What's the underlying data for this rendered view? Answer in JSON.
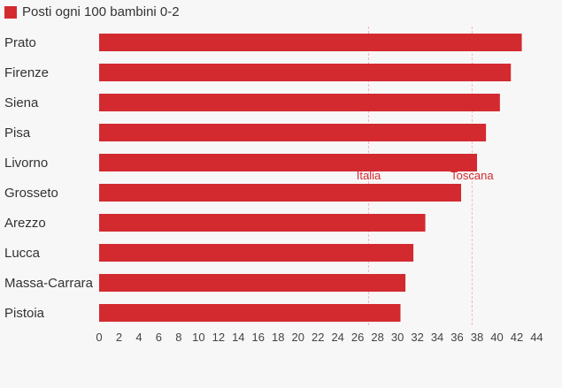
{
  "chart_data": {
    "type": "bar",
    "orientation": "horizontal",
    "legend": {
      "label": "Posti ogni 100 bambini 0-2",
      "position": "top-left"
    },
    "categories": [
      "Prato",
      "Firenze",
      "Siena",
      "Pisa",
      "Livorno",
      "Grosseto",
      "Arezzo",
      "Lucca",
      "Massa-Carrara",
      "Pistoia"
    ],
    "series": [
      {
        "name": "Posti ogni 100 bambini 0-2",
        "values": [
          42.5,
          41.4,
          40.3,
          38.9,
          38.0,
          36.4,
          32.8,
          31.6,
          30.8,
          30.3
        ],
        "color": "#d32a30"
      }
    ],
    "reference_lines": [
      {
        "label": "Italia",
        "value": 27.1,
        "color": "#d32a30"
      },
      {
        "label": "Toscana",
        "value": 37.5,
        "color": "#d32a30"
      }
    ],
    "xlim": [
      0,
      44
    ],
    "xticks": [
      "0",
      "2",
      "4",
      "6",
      "8",
      "10",
      "12",
      "14",
      "16",
      "18",
      "20",
      "22",
      "24",
      "26",
      "28",
      "30",
      "32",
      "34",
      "36",
      "38",
      "40",
      "42",
      "44"
    ],
    "grid": false
  }
}
